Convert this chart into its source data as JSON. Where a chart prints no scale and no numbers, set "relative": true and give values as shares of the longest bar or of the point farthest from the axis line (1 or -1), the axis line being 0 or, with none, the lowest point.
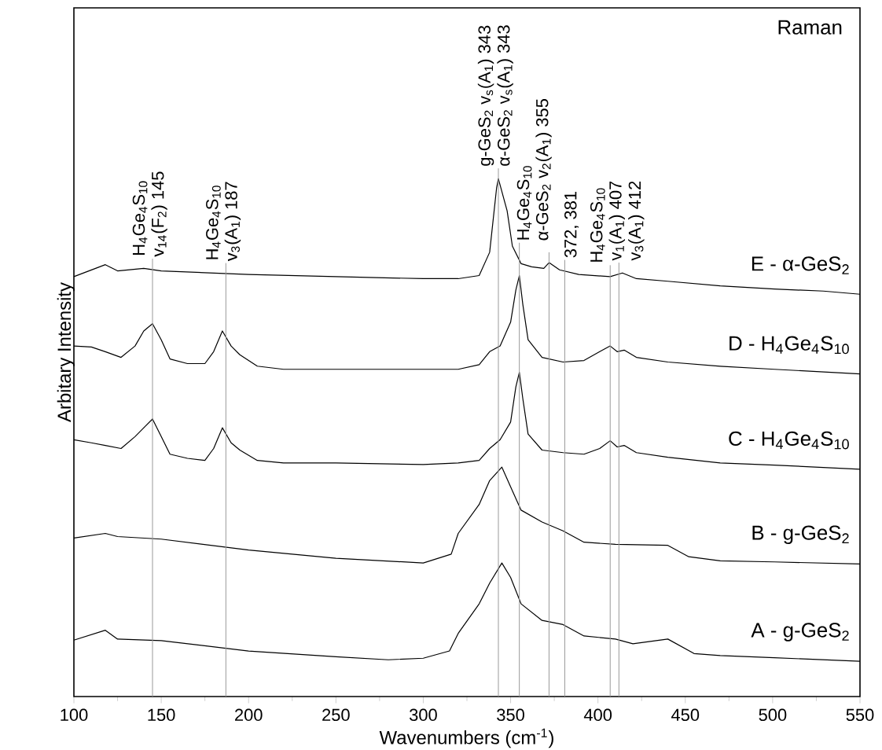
{
  "chart_data": {
    "type": "line",
    "relative": true,
    "xlabel": "Wavenumbers (cm$^{-1}$)",
    "ylabel": "Arbitary Intensity",
    "annotations": [
      "Raman",
      {
        "text": "H$_{4}$Ge$_{4}$S$_{10}$",
        "x": 145,
        "y": 0.83
      },
      {
        "text": "H$_{4}$Ge$_{4}$S$_{10}$",
        "x": 187,
        "y": 0.82
      },
      {
        "text": "g-GeS$_{2}$ v$_{s}$(A$_{1}$) 343",
        "x": 343,
        "y": 1.0
      },
      {
        "text": "H$_{4}$Ge$_{4}$S$_{10}$",
        "x": 355,
        "y": 0.84
      },
      {
        "text": "H$_{4}$Ge$_{4}$S$_{10}$",
        "x": 407,
        "y": 0.82
      }
    ],
    "xlim": [
      100,
      550
    ],
    "xticks": [
      100,
      150,
      200,
      250,
      300,
      350,
      400,
      450,
      500,
      550
    ],
    "line_style": "solid",
    "grid": false,
    "series": [
      {
        "name": "A - g-GeS$_{2}$",
        "color": "#000000",
        "x": [
          100,
          118,
          125,
          150,
          200,
          250,
          280,
          300,
          315,
          320,
          332,
          338,
          345,
          350,
          356,
          368,
          380,
          392,
          410,
          420,
          440,
          455,
          470,
          501,
          550
        ],
        "values": [
          0.109,
          0.128,
          0.111,
          0.108,
          0.088,
          0.077,
          0.071,
          0.074,
          0.088,
          0.122,
          0.179,
          0.219,
          0.258,
          0.23,
          0.179,
          0.147,
          0.139,
          0.117,
          0.111,
          0.102,
          0.111,
          0.083,
          0.079,
          0.075,
          0.068
        ]
      },
      {
        "name": "B - g-GeS$_{2}$",
        "color": "#000000",
        "x": [
          100,
          118,
          125,
          150,
          200,
          250,
          300,
          316,
          320,
          332,
          338,
          345,
          350,
          356,
          368,
          380,
          392,
          410,
          440,
          452,
          470,
          501,
          550
        ],
        "values": [
          0.306,
          0.315,
          0.309,
          0.304,
          0.283,
          0.267,
          0.258,
          0.275,
          0.315,
          0.371,
          0.417,
          0.443,
          0.405,
          0.36,
          0.337,
          0.32,
          0.298,
          0.294,
          0.292,
          0.27,
          0.262,
          0.26,
          0.256
        ]
      },
      {
        "name": "C - H$_{4}$Ge$_{4}$S$_{10}$",
        "color": "#000000",
        "x": [
          100,
          110,
          118,
          127,
          135,
          140,
          145,
          150,
          155,
          165,
          175,
          180,
          185,
          190,
          195,
          205,
          220,
          250,
          300,
          320,
          332,
          338,
          344,
          350,
          353,
          355,
          357,
          360,
          368,
          380,
          392,
          401,
          407,
          411,
          415,
          422,
          440,
          470,
          501,
          550
        ],
        "values": [
          0.496,
          0.49,
          0.485,
          0.479,
          0.502,
          0.519,
          0.536,
          0.502,
          0.468,
          0.46,
          0.456,
          0.479,
          0.519,
          0.49,
          0.476,
          0.456,
          0.451,
          0.451,
          0.448,
          0.451,
          0.456,
          0.479,
          0.496,
          0.53,
          0.598,
          0.626,
          0.575,
          0.507,
          0.476,
          0.471,
          0.468,
          0.479,
          0.494,
          0.482,
          0.485,
          0.471,
          0.462,
          0.451,
          0.447,
          0.439
        ]
      },
      {
        "name": "D - H$_{4}$Ge$_{4}$S$_{10}$",
        "color": "#000000",
        "x": [
          100,
          110,
          118,
          127,
          135,
          140,
          145,
          150,
          155,
          165,
          175,
          180,
          185,
          190,
          195,
          205,
          220,
          250,
          300,
          320,
          332,
          338,
          344,
          350,
          353,
          355,
          357,
          360,
          368,
          380,
          392,
          401,
          407,
          411,
          415,
          422,
          440,
          470,
          501,
          550
        ],
        "values": [
          0.677,
          0.675,
          0.666,
          0.655,
          0.677,
          0.706,
          0.72,
          0.689,
          0.652,
          0.643,
          0.643,
          0.666,
          0.706,
          0.677,
          0.66,
          0.638,
          0.632,
          0.632,
          0.632,
          0.632,
          0.641,
          0.666,
          0.677,
          0.723,
          0.785,
          0.813,
          0.757,
          0.689,
          0.655,
          0.646,
          0.649,
          0.666,
          0.677,
          0.666,
          0.669,
          0.655,
          0.646,
          0.638,
          0.632,
          0.623
        ]
      },
      {
        "name": "E - α-GeS$_{2}$",
        "color": "#000000",
        "x": [
          100,
          118,
          125,
          140,
          150,
          200,
          250,
          300,
          320,
          332,
          338,
          342,
          343,
          348,
          351,
          356,
          362,
          369,
          372,
          378,
          389,
          407,
          414,
          422,
          440,
          470,
          501,
          529,
          550
        ],
        "values": [
          0.811,
          0.834,
          0.822,
          0.827,
          0.822,
          0.815,
          0.811,
          0.807,
          0.807,
          0.813,
          0.858,
          0.983,
          1.0,
          0.938,
          0.87,
          0.836,
          0.83,
          0.827,
          0.838,
          0.824,
          0.815,
          0.811,
          0.818,
          0.807,
          0.802,
          0.793,
          0.787,
          0.783,
          0.777
        ]
      }
    ],
    "ref_lines": [
      {
        "axis": "x",
        "value": 145,
        "label": "v$_{14}$(F$_{2}$) 145",
        "color": "#999999"
      },
      {
        "axis": "x",
        "value": 187,
        "label": "v$_{3}$(A$_{1}$) 187",
        "color": "#999999"
      },
      {
        "axis": "x",
        "value": 343,
        "label": "α-GeS$_{2}$ v$_{s}$(A$_{1}$) 343",
        "color": "#999999"
      },
      {
        "axis": "x",
        "value": 355,
        "label": "α-GeS$_{2}$ v$_{2}$(A$_{1}$) 355",
        "color": "#999999"
      },
      {
        "axis": "x",
        "value": 372,
        "color": "#999999"
      },
      {
        "axis": "x",
        "value": 381,
        "label": "372, 381",
        "color": "#999999"
      },
      {
        "axis": "x",
        "value": 407,
        "label": "v$_{1}$(A$_{1}$) 407",
        "color": "#999999"
      },
      {
        "axis": "x",
        "value": 412,
        "label": "v$_{3}$(A$_{1}$) 412",
        "color": "#999999"
      }
    ]
  }
}
